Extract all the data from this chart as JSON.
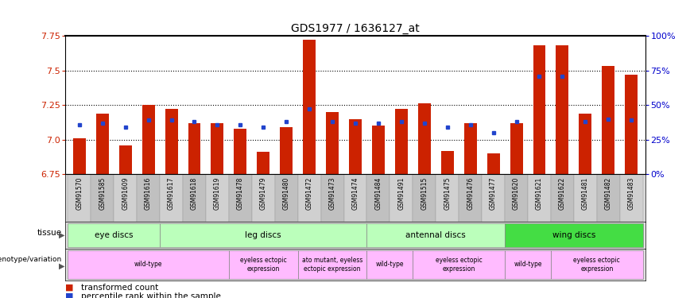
{
  "title": "GDS1977 / 1636127_at",
  "samples": [
    "GSM91570",
    "GSM91585",
    "GSM91609",
    "GSM91616",
    "GSM91617",
    "GSM91618",
    "GSM91619",
    "GSM91478",
    "GSM91479",
    "GSM91480",
    "GSM91472",
    "GSM91473",
    "GSM91474",
    "GSM91484",
    "GSM91491",
    "GSM91515",
    "GSM91475",
    "GSM91476",
    "GSM91477",
    "GSM91620",
    "GSM91621",
    "GSM91622",
    "GSM91481",
    "GSM91482",
    "GSM91483"
  ],
  "red_values": [
    7.01,
    7.19,
    6.96,
    7.25,
    7.22,
    7.12,
    7.12,
    7.08,
    6.91,
    7.09,
    7.72,
    7.2,
    7.15,
    7.1,
    7.22,
    7.26,
    6.92,
    7.12,
    6.9,
    7.12,
    7.68,
    7.68,
    7.19,
    7.53,
    7.47
  ],
  "blue_values": [
    7.11,
    7.12,
    7.09,
    7.14,
    7.14,
    7.13,
    7.11,
    7.11,
    7.09,
    7.13,
    7.22,
    7.13,
    7.12,
    7.12,
    7.13,
    7.12,
    7.09,
    7.11,
    7.05,
    7.13,
    7.46,
    7.46,
    7.13,
    7.15,
    7.14
  ],
  "y_min": 6.75,
  "y_max": 7.75,
  "y_ticks_left": [
    6.75,
    7.0,
    7.25,
    7.5,
    7.75
  ],
  "y_ticks_right_pct": [
    0,
    25,
    50,
    75,
    100
  ],
  "bar_color": "#cc2200",
  "blue_color": "#2244cc",
  "bar_width": 0.55,
  "bg_color": "#ffffff",
  "tick_color_left": "#cc2200",
  "tick_color_right": "#0000cc",
  "tissue_info": [
    {
      "label": "eye discs",
      "start": 0,
      "end": 3,
      "color": "#bbffbb"
    },
    {
      "label": "leg discs",
      "start": 4,
      "end": 12,
      "color": "#bbffbb"
    },
    {
      "label": "antennal discs",
      "start": 13,
      "end": 18,
      "color": "#bbffbb"
    },
    {
      "label": "wing discs",
      "start": 19,
      "end": 24,
      "color": "#44dd44"
    }
  ],
  "geno_info": [
    {
      "label": "wild-type",
      "start": 0,
      "end": 6,
      "color": "#ffbbff"
    },
    {
      "label": "eyeless ectopic\nexpression",
      "start": 7,
      "end": 9,
      "color": "#ffbbff"
    },
    {
      "label": "ato mutant, eyeless\nectopic expression",
      "start": 10,
      "end": 12,
      "color": "#ffbbff"
    },
    {
      "label": "wild-type",
      "start": 13,
      "end": 14,
      "color": "#ffbbff"
    },
    {
      "label": "eyeless ectopic\nexpression",
      "start": 15,
      "end": 18,
      "color": "#ffbbff"
    },
    {
      "label": "wild-type",
      "start": 19,
      "end": 20,
      "color": "#ffbbff"
    },
    {
      "label": "eyeless ectopic\nexpression",
      "start": 21,
      "end": 24,
      "color": "#ffbbff"
    }
  ]
}
